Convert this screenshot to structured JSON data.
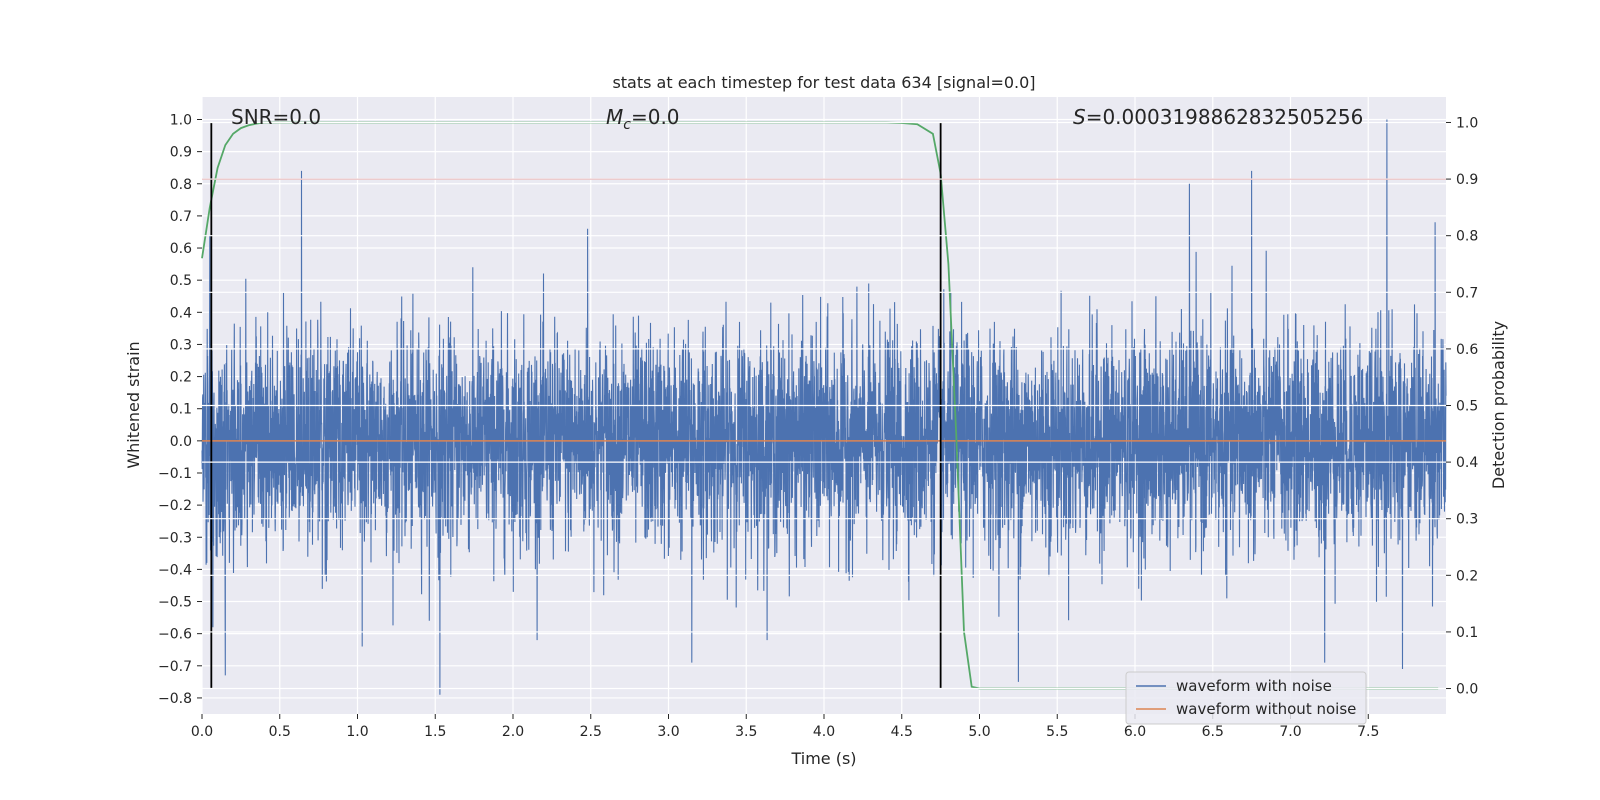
{
  "chart_data": {
    "type": "line",
    "title": "stats at each timestep for test data 634 [signal=0.0]",
    "xlabel": "Time (s)",
    "ylabel_left": "Whitened strain",
    "ylabel_right": "Detection probability",
    "xlim": [
      0.0,
      8.0
    ],
    "ylim_left": [
      -0.85,
      1.07
    ],
    "ylim_right": [
      -0.045,
      1.045
    ],
    "x_ticks": [
      "0.0",
      "0.5",
      "1.0",
      "1.5",
      "2.0",
      "2.5",
      "3.0",
      "3.5",
      "4.0",
      "4.5",
      "5.0",
      "5.5",
      "6.0",
      "6.5",
      "7.0",
      "7.5"
    ],
    "y_left_ticks": [
      "1.0",
      "0.9",
      "0.8",
      "0.7",
      "0.6",
      "0.5",
      "0.4",
      "0.3",
      "0.2",
      "0.1",
      "0.0",
      "−0.1",
      "−0.2",
      "−0.3",
      "−0.4",
      "−0.5",
      "−0.6",
      "−0.7",
      "−0.8"
    ],
    "y_right_ticks": [
      "1.0",
      "0.9",
      "0.8",
      "0.7",
      "0.6",
      "0.5",
      "0.4",
      "0.3",
      "0.2",
      "0.1",
      "0.0"
    ],
    "grid": true,
    "legend_position": "bottom-right",
    "annotations": {
      "snr": "SNR=0.0",
      "mc_symbol": "M",
      "mc_sub": "c",
      "mc_value": "=0.0",
      "s_symbol": "S",
      "s_value": "=0.0003198862832505256"
    },
    "series": [
      {
        "name": "waveform with noise",
        "axis": "left",
        "color": "#4c72b0",
        "description": "dense noise, envelope approx ±0.3, peaks to 1.0",
        "spikes": [
          {
            "x": 0.05,
            "y": 0.64
          },
          {
            "x": 0.07,
            "y": -0.58
          },
          {
            "x": 0.15,
            "y": -0.73
          },
          {
            "x": 0.64,
            "y": 0.84
          },
          {
            "x": 1.03,
            "y": -0.64
          },
          {
            "x": 1.53,
            "y": -0.79
          },
          {
            "x": 2.48,
            "y": 0.66
          },
          {
            "x": 3.15,
            "y": -0.69
          },
          {
            "x": 5.25,
            "y": -0.75
          },
          {
            "x": 6.35,
            "y": 0.8
          },
          {
            "x": 6.75,
            "y": 0.84
          },
          {
            "x": 7.22,
            "y": -0.69
          },
          {
            "x": 7.62,
            "y": 1.0
          },
          {
            "x": 7.72,
            "y": -0.71
          },
          {
            "x": 7.93,
            "y": 0.68
          }
        ]
      },
      {
        "name": "waveform without noise",
        "axis": "left",
        "color": "#dd8452",
        "x": [
          0.0,
          8.0
        ],
        "y": [
          0.0,
          0.0
        ]
      },
      {
        "name": "",
        "axis": "right",
        "color": "#55a868",
        "x": [
          0.0,
          0.05,
          0.1,
          0.15,
          0.2,
          0.25,
          0.3,
          0.35,
          0.4,
          0.5,
          1.0,
          2.0,
          3.0,
          4.0,
          4.4,
          4.5,
          4.6,
          4.7,
          4.75,
          4.8,
          4.85,
          4.9,
          4.95,
          5.0,
          5.1,
          6.0,
          7.0,
          7.95
        ],
        "y": [
          0.76,
          0.85,
          0.92,
          0.96,
          0.98,
          0.99,
          0.995,
          0.998,
          1.0,
          1.0,
          1.0,
          1.0,
          1.0,
          1.0,
          1.0,
          0.999,
          0.997,
          0.98,
          0.91,
          0.75,
          0.45,
          0.1,
          0.003,
          0.0,
          0.0,
          0.0,
          0.0,
          0.0
        ]
      },
      {
        "name": "",
        "axis": "right",
        "color": "#c44e52",
        "x": [
          0.0,
          8.0
        ],
        "y": [
          0.9,
          0.9
        ]
      }
    ],
    "vertical_lines_x": [
      0.06,
      4.75
    ]
  }
}
